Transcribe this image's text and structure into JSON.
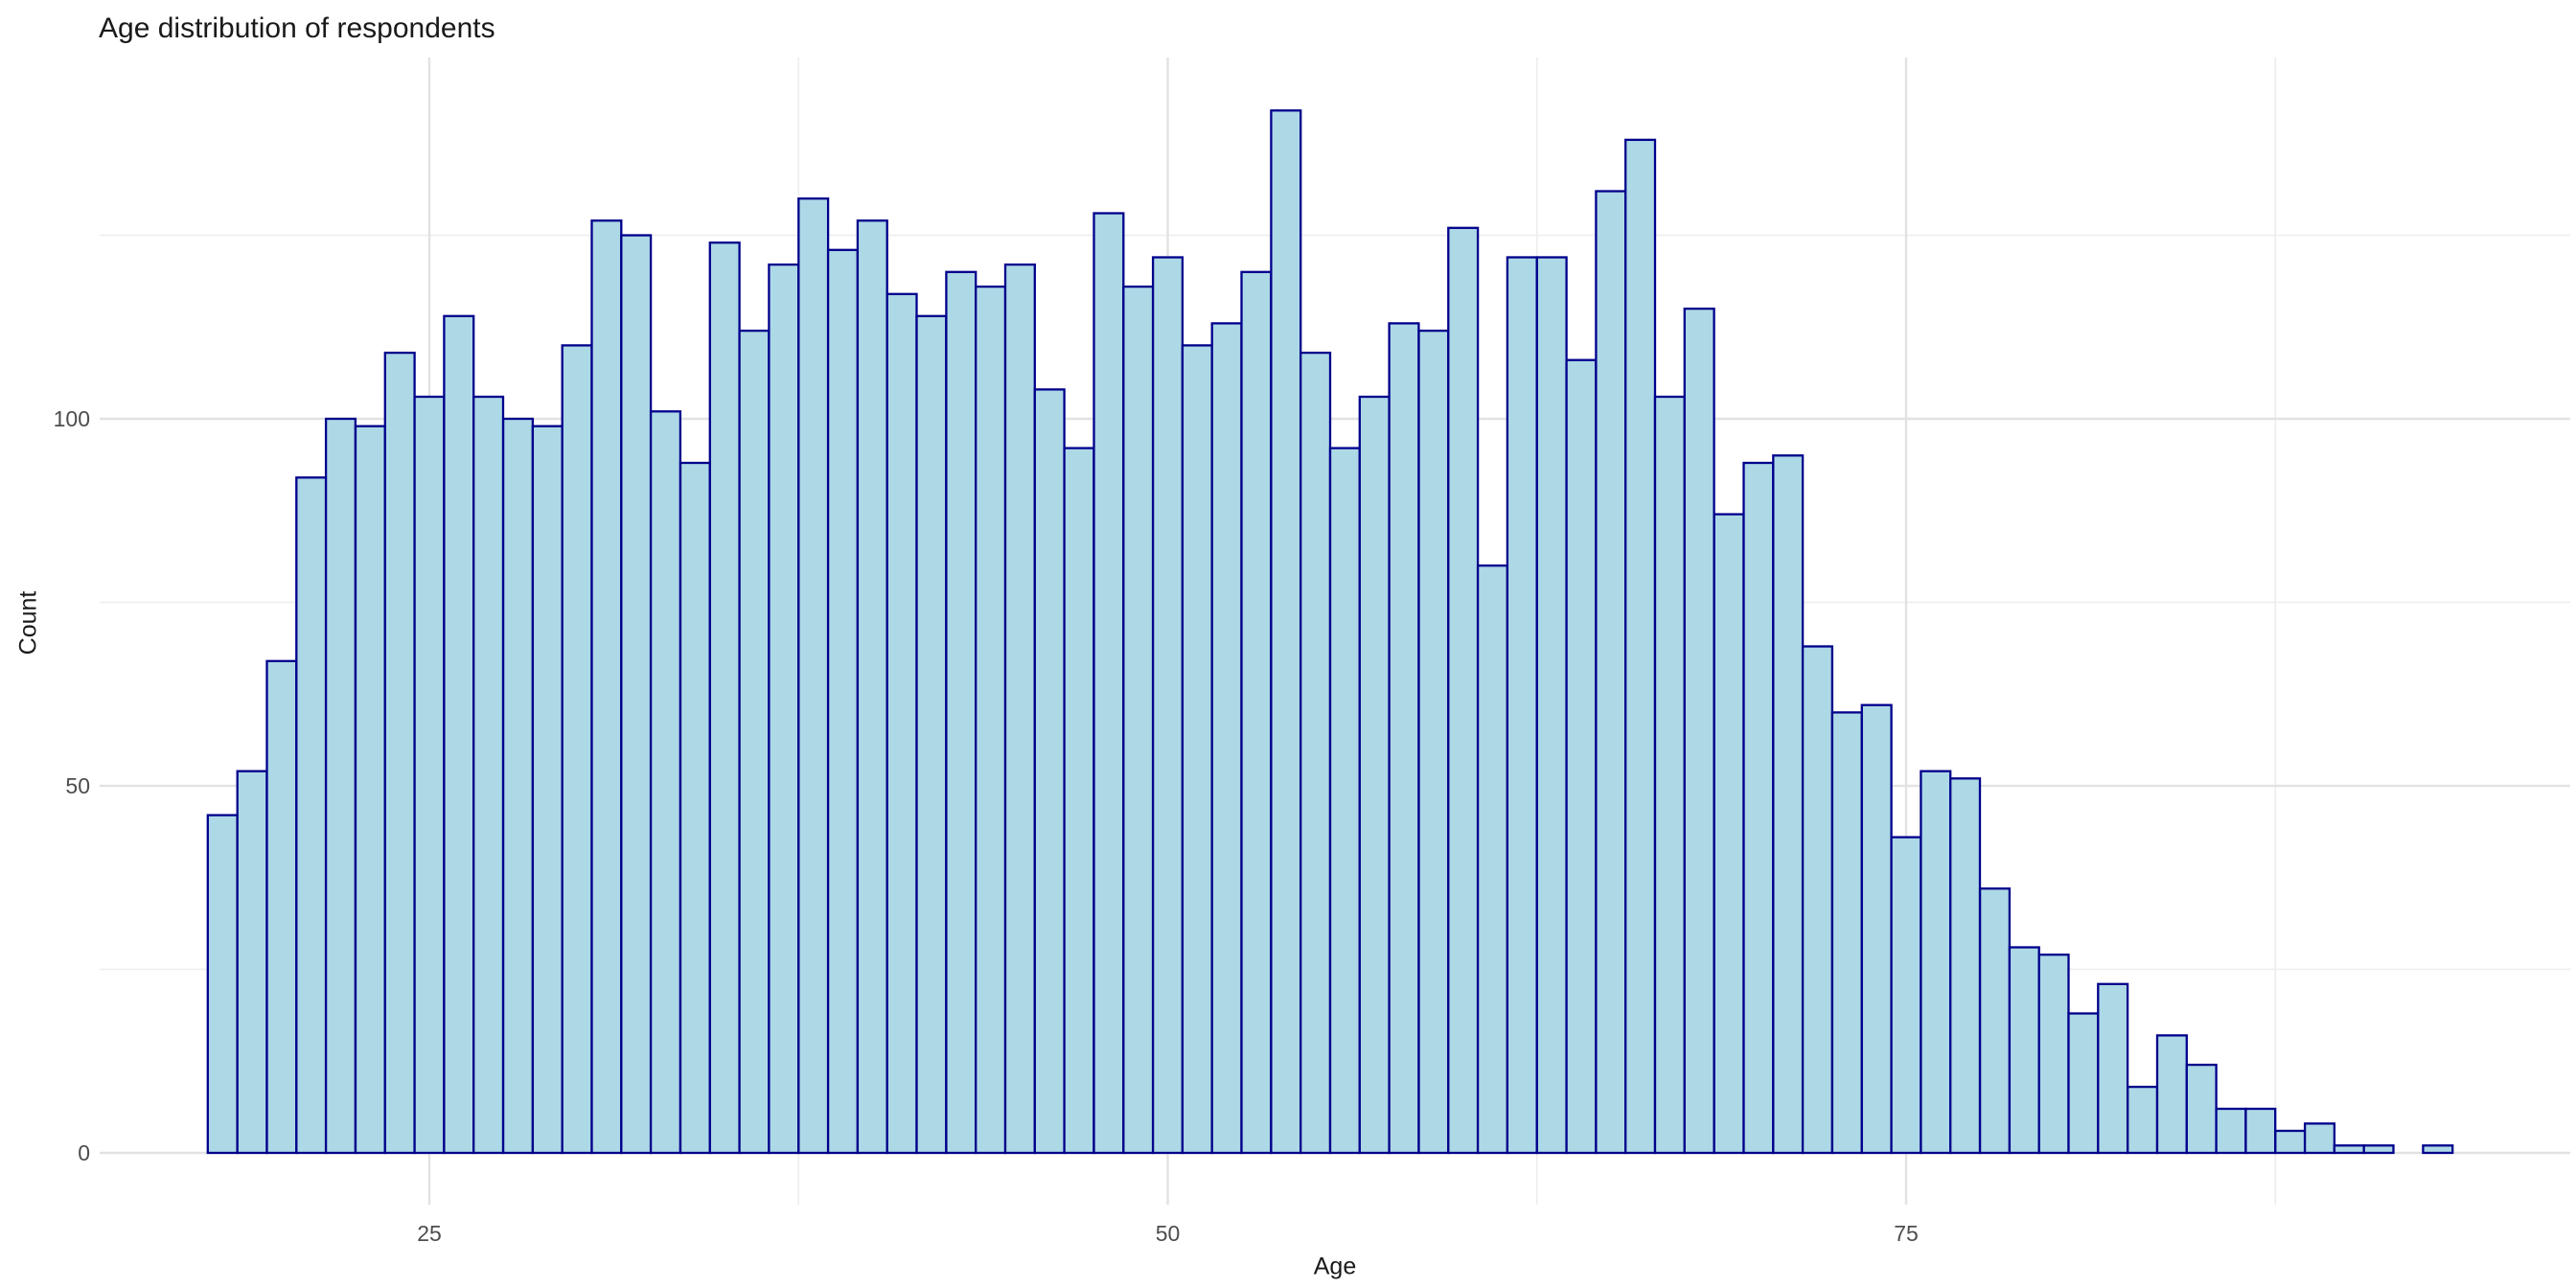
{
  "chart_title": "Age distribution of respondents",
  "chart_data": {
    "type": "histogram",
    "title": "Age distribution of respondents",
    "xlabel": "Age",
    "ylabel": "Count",
    "bin_width": 1,
    "ages": [
      18,
      19,
      20,
      21,
      22,
      23,
      24,
      25,
      26,
      27,
      28,
      29,
      30,
      31,
      32,
      33,
      34,
      35,
      36,
      37,
      38,
      39,
      40,
      41,
      42,
      43,
      44,
      45,
      46,
      47,
      48,
      49,
      50,
      51,
      52,
      53,
      54,
      55,
      56,
      57,
      58,
      59,
      60,
      61,
      62,
      63,
      64,
      65,
      66,
      67,
      68,
      69,
      70,
      71,
      72,
      73,
      74,
      75,
      76,
      77,
      78,
      79,
      80,
      81,
      82,
      83,
      84,
      85,
      86,
      87,
      88,
      89,
      90,
      91,
      92,
      93
    ],
    "counts": [
      46,
      52,
      67,
      92,
      100,
      99,
      109,
      103,
      114,
      103,
      100,
      99,
      110,
      127,
      125,
      101,
      94,
      124,
      112,
      121,
      130,
      123,
      127,
      117,
      114,
      120,
      118,
      121,
      104,
      96,
      128,
      118,
      122,
      110,
      113,
      120,
      142,
      109,
      96,
      103,
      113,
      112,
      126,
      80,
      122,
      122,
      108,
      131,
      138,
      103,
      115,
      87,
      94,
      95,
      69,
      60,
      61,
      43,
      52,
      51,
      36,
      28,
      27,
      19,
      23,
      9,
      16,
      12,
      6,
      6,
      3,
      4,
      1,
      1,
      0,
      1
    ],
    "x_major_ticks": [
      25,
      50,
      75
    ],
    "x_minor_gridlines": [
      37.5,
      62.5,
      87.5
    ],
    "y_major_ticks": [
      0,
      50,
      100
    ],
    "y_minor_gridlines": [
      25,
      75,
      125
    ],
    "xlim": [
      13.8,
      97.5
    ],
    "ylim": [
      0,
      149
    ],
    "grid": "on",
    "legend_position": "none",
    "bar_fill": "#ADD8E6",
    "bar_stroke": "#00008B",
    "grid_major_color": "#E2E2E2",
    "grid_minor_color": "#EDEDED",
    "tick_label_color": "#4D4D4D",
    "text_color": "#1A1A1A",
    "background_color": "#FFFFFF"
  }
}
